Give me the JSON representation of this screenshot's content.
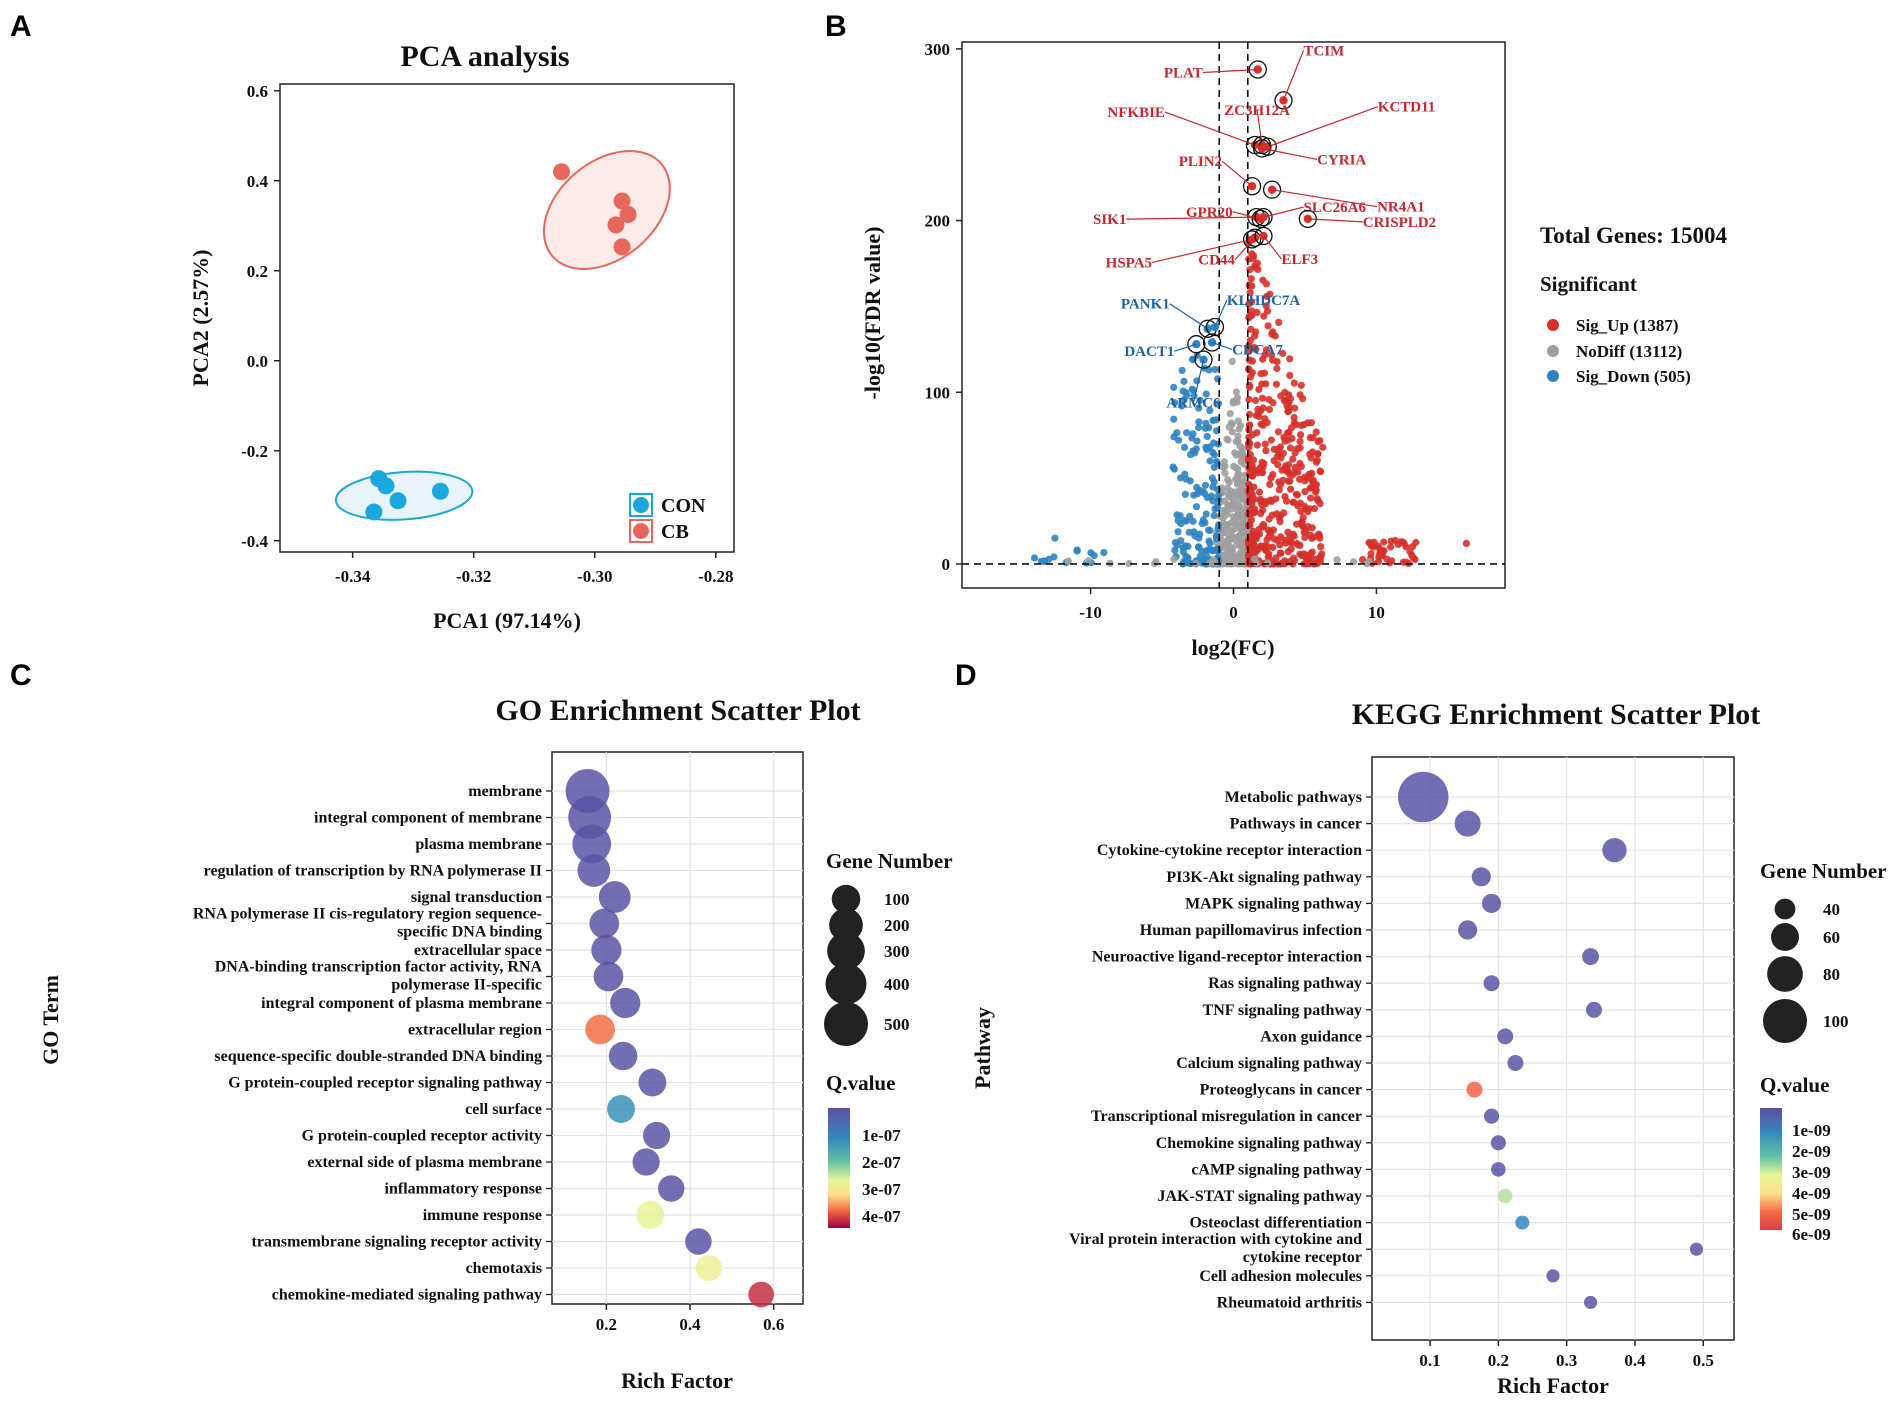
{
  "panel_labels": {
    "a": "A",
    "b": "B",
    "c": "C",
    "d": "D"
  },
  "chart_data": [
    {
      "type": "scatter",
      "panel": "A",
      "title": "PCA analysis",
      "xlabel": "PCA1 (97.14%)",
      "ylabel": "PCA2 (2.57%)",
      "xlim": [
        -0.352,
        -0.277
      ],
      "ylim": [
        -0.425,
        0.615
      ],
      "xticks": [
        -0.34,
        -0.32,
        -0.3,
        -0.28
      ],
      "yticks": [
        -0.4,
        -0.2,
        0.0,
        0.2,
        0.4,
        0.6
      ],
      "xtick_labels": [
        "-0.34",
        "-0.32",
        "-0.30",
        "-0.28"
      ],
      "ytick_labels": [
        "-0.4",
        "-0.2",
        "0.0",
        "0.2",
        "0.4",
        "0.6"
      ],
      "series": [
        {
          "name": "CON",
          "color": "#1aa7dd",
          "fill": "#e8f4fa",
          "points": [
            [
              -0.3357,
              -0.262
            ],
            [
              -0.3345,
              -0.278
            ],
            [
              -0.3325,
              -0.311
            ],
            [
              -0.3365,
              -0.336
            ],
            [
              -0.3255,
              -0.29
            ]
          ],
          "ellipse": {
            "center": [
              -0.3315,
              -0.3
            ],
            "rx_units": 0.0113,
            "ry_units": 0.105,
            "rotation_deg": -4
          }
        },
        {
          "name": "CB",
          "color": "#e8675c",
          "fill": "#fcebe8",
          "points": [
            [
              -0.3055,
              0.42
            ],
            [
              -0.2955,
              0.355
            ],
            [
              -0.2965,
              0.302
            ],
            [
              -0.2945,
              0.325
            ],
            [
              -0.2955,
              0.253
            ]
          ],
          "ellipse": {
            "center": [
              -0.298,
              0.335
            ],
            "rx_units": 0.0118,
            "ry_units": 0.215,
            "rotation_deg": -40
          }
        }
      ],
      "legend": [
        "CON",
        "CB"
      ]
    },
    {
      "type": "scatter",
      "panel": "B",
      "title": "",
      "xlabel": "log2(FC)",
      "ylabel": "-log10(FDR value)",
      "xlim": [
        -19,
        19
      ],
      "ylim": [
        -14,
        304
      ],
      "xticks": [
        -10,
        0,
        10
      ],
      "yticks": [
        0,
        100,
        200,
        300
      ],
      "xtick_labels": [
        "-10",
        "0",
        "10"
      ],
      "ytick_labels": [
        "0",
        "100",
        "200",
        "300"
      ],
      "thresholds": {
        "log2fc": [
          -1,
          1
        ],
        "fdr_line": 0
      },
      "total_genes_label": "Total Genes: 15004",
      "legend_title": "Significant",
      "legend": [
        {
          "label": "Sig_Up (1387)",
          "color": "#d7302a"
        },
        {
          "label": "NoDiff (13112)",
          "color": "#9e9e9e"
        },
        {
          "label": "Sig_Down (505)",
          "color": "#2f83c1"
        }
      ],
      "labeled_genes": [
        {
          "gene": "PLAT",
          "x": 1.7,
          "y": 288,
          "dir": "up"
        },
        {
          "gene": "TCIM",
          "x": 3.5,
          "y": 270,
          "dir": "up"
        },
        {
          "gene": "NFKBIE",
          "x": 1.5,
          "y": 244,
          "dir": "up"
        },
        {
          "gene": "ZC3H12A",
          "x": 2.0,
          "y": 244,
          "dir": "up"
        },
        {
          "gene": "KCTD11",
          "x": 2.4,
          "y": 243,
          "dir": "up"
        },
        {
          "gene": "CYRIA",
          "x": 2.0,
          "y": 242,
          "dir": "up"
        },
        {
          "gene": "PLIN2",
          "x": 1.3,
          "y": 220,
          "dir": "up"
        },
        {
          "gene": "NR4A1",
          "x": 2.7,
          "y": 218,
          "dir": "up"
        },
        {
          "gene": "SIK1",
          "x": 1.6,
          "y": 202,
          "dir": "up"
        },
        {
          "gene": "GPR20",
          "x": 1.9,
          "y": 201,
          "dir": "up"
        },
        {
          "gene": "SLC26A6",
          "x": 2.1,
          "y": 202,
          "dir": "up"
        },
        {
          "gene": "CRISPLD2",
          "x": 5.2,
          "y": 201,
          "dir": "up"
        },
        {
          "gene": "HSPA5",
          "x": 1.3,
          "y": 189,
          "dir": "up"
        },
        {
          "gene": "CD44",
          "x": 1.5,
          "y": 190,
          "dir": "up"
        },
        {
          "gene": "ELF3",
          "x": 2.1,
          "y": 191,
          "dir": "up"
        },
        {
          "gene": "PANK1",
          "x": -1.8,
          "y": 137,
          "dir": "down"
        },
        {
          "gene": "KLHDC7A",
          "x": -1.3,
          "y": 138,
          "dir": "down"
        },
        {
          "gene": "DACT1",
          "x": -2.6,
          "y": 128,
          "dir": "down"
        },
        {
          "gene": "CDCA7",
          "x": -1.5,
          "y": 129,
          "dir": "down"
        },
        {
          "gene": "ARMC6",
          "x": -2.1,
          "y": 119,
          "dir": "down"
        }
      ],
      "label_text": {
        "PLAT": "PLAT",
        "TCIM": "TCIM",
        "NFKBIE": "NFKBIE",
        "ZC3H12A": "ZC3H12A",
        "KCTD11": "KCTD11",
        "CYRIA": "CYRIA",
        "PLIN2": "PLIN2",
        "NR4A1": "NR4A1",
        "SIK1": "SIK1",
        "GPR20": "GPR20",
        "SLC26A6": "SLC26A6",
        "CRISPLD2": "CRISPLD2",
        "HSPA5": "HSPA5",
        "CD44": "CD44",
        "ELF3": "ELF3",
        "PANK1": "PANK1",
        "KLHDC7A": "KLHDC7A",
        "DACT1": "DACT1",
        "CDCA7": "CDCA7",
        "ARMC6": "ARMC6"
      }
    },
    {
      "type": "scatter",
      "panel": "C",
      "title": "GO Enrichment Scatter Plot",
      "xlabel": "Rich Factor",
      "ylabel": "GO Term",
      "xlim": [
        0.07,
        0.67
      ],
      "xticks": [
        0.2,
        0.4,
        0.6
      ],
      "xtick_labels": [
        "0.2",
        "0.4",
        "0.6"
      ],
      "terms": [
        {
          "term": [
            "membrane"
          ],
          "rich": 0.155,
          "count": 500,
          "q": 1e-08
        },
        {
          "term": [
            "integral component of membrane"
          ],
          "rich": 0.16,
          "count": 460,
          "q": 1e-08
        },
        {
          "term": [
            "plasma membrane"
          ],
          "rich": 0.165,
          "count": 330,
          "q": 1e-08
        },
        {
          "term": [
            "regulation of transcription by RNA polymerase II"
          ],
          "rich": 0.17,
          "count": 180,
          "q": 1e-08
        },
        {
          "term": [
            "signal transduction"
          ],
          "rich": 0.22,
          "count": 160,
          "q": 1e-08
        },
        {
          "term": [
            "RNA polymerase II cis-regulatory region sequence-",
            "specific DNA binding"
          ],
          "rich": 0.195,
          "count": 120,
          "q": 1e-08
        },
        {
          "term": [
            "extracellular space"
          ],
          "rich": 0.2,
          "count": 130,
          "q": 1e-08
        },
        {
          "term": [
            "DNA-binding transcription factor activity, RNA",
            "polymerase II-specific"
          ],
          "rich": 0.205,
          "count": 120,
          "q": 1e-08
        },
        {
          "term": [
            "integral component of plasma membrane"
          ],
          "rich": 0.245,
          "count": 130,
          "q": 1e-08
        },
        {
          "term": [
            "extracellular region"
          ],
          "rich": 0.185,
          "count": 120,
          "q": 3.9e-07
        },
        {
          "term": [
            "sequence-specific double-stranded DNA binding"
          ],
          "rich": 0.24,
          "count": 100,
          "q": 1e-08
        },
        {
          "term": [
            "G protein-coupled receptor signaling pathway"
          ],
          "rich": 0.31,
          "count": 90,
          "q": 1e-08
        },
        {
          "term": [
            "cell surface"
          ],
          "rich": 0.235,
          "count": 90,
          "q": 1.3e-07
        },
        {
          "term": [
            "G protein-coupled receptor activity"
          ],
          "rich": 0.32,
          "count": 80,
          "q": 1e-08
        },
        {
          "term": [
            "external side of plasma membrane"
          ],
          "rich": 0.295,
          "count": 80,
          "q": 1e-08
        },
        {
          "term": [
            "inflammatory response"
          ],
          "rich": 0.355,
          "count": 70,
          "q": 1e-08
        },
        {
          "term": [
            "immune response"
          ],
          "rich": 0.305,
          "count": 90,
          "q": 2.8e-07
        },
        {
          "term": [
            "transmembrane signaling receptor activity"
          ],
          "rich": 0.42,
          "count": 70,
          "q": 1e-08
        },
        {
          "term": [
            "chemotaxis"
          ],
          "rich": 0.445,
          "count": 65,
          "q": 2.9e-07
        },
        {
          "term": [
            "chemokine-mediated signaling pathway"
          ],
          "rich": 0.57,
          "count": 60,
          "q": 4.3e-07
        }
      ],
      "size_legend_title": "Gene Number",
      "size_legend": [
        100,
        200,
        300,
        400,
        500
      ],
      "color_legend_title": "Q.value",
      "color_legend_ticks": [
        "1e-07",
        "2e-07",
        "3e-07",
        "4e-07"
      ],
      "color_range": [
        0.0,
        4.6e-07
      ]
    },
    {
      "type": "scatter",
      "panel": "D",
      "title": "KEGG Enrichment Scatter Plot",
      "xlabel": "Rich Factor",
      "ylabel": "Pathway",
      "xlim": [
        0.015,
        0.545
      ],
      "xticks": [
        0.1,
        0.2,
        0.3,
        0.4,
        0.5
      ],
      "xtick_labels": [
        "0.1",
        "0.2",
        "0.3",
        "0.4",
        "0.5"
      ],
      "terms": [
        {
          "term": [
            "Metabolic pathways"
          ],
          "rich": 0.09,
          "count": 115,
          "q": 1e-10
        },
        {
          "term": [
            "Pathways in cancer"
          ],
          "rich": 0.155,
          "count": 55,
          "q": 1e-10
        },
        {
          "term": [
            "Cytokine-cytokine receptor interaction"
          ],
          "rich": 0.37,
          "count": 50,
          "q": 1e-10
        },
        {
          "term": [
            "PI3K-Akt signaling pathway"
          ],
          "rich": 0.175,
          "count": 35,
          "q": 1e-10
        },
        {
          "term": [
            "MAPK signaling pathway"
          ],
          "rich": 0.19,
          "count": 35,
          "q": 1e-10
        },
        {
          "term": [
            "Human papillomavirus infection"
          ],
          "rich": 0.155,
          "count": 35,
          "q": 1e-10
        },
        {
          "term": [
            "Neuroactive ligand-receptor interaction"
          ],
          "rich": 0.335,
          "count": 28,
          "q": 1e-10
        },
        {
          "term": [
            "Ras signaling pathway"
          ],
          "rich": 0.19,
          "count": 25,
          "q": 1e-10
        },
        {
          "term": [
            "TNF signaling pathway"
          ],
          "rich": 0.34,
          "count": 25,
          "q": 1e-10
        },
        {
          "term": [
            "Axon guidance"
          ],
          "rich": 0.21,
          "count": 25,
          "q": 1e-10
        },
        {
          "term": [
            "Calcium signaling pathway"
          ],
          "rich": 0.225,
          "count": 25,
          "q": 1e-10
        },
        {
          "term": [
            "Proteoglycans in cancer"
          ],
          "rich": 0.165,
          "count": 25,
          "q": 5.7e-09
        },
        {
          "term": [
            "Transcriptional misregulation in cancer"
          ],
          "rich": 0.19,
          "count": 22,
          "q": 1e-10
        },
        {
          "term": [
            "Chemokine signaling pathway"
          ],
          "rich": 0.2,
          "count": 22,
          "q": 1e-10
        },
        {
          "term": [
            "cAMP signaling pathway"
          ],
          "rich": 0.2,
          "count": 20,
          "q": 1e-10
        },
        {
          "term": [
            "JAK-STAT signaling pathway"
          ],
          "rich": 0.21,
          "count": 20,
          "q": 3.2e-09
        },
        {
          "term": [
            "Osteoclast differentiation"
          ],
          "rich": 0.235,
          "count": 18,
          "q": 1.3e-09
        },
        {
          "term": [
            "Viral protein interaction with cytokine and",
            "cytokine receptor"
          ],
          "rich": 0.49,
          "count": 15,
          "q": 1e-10
        },
        {
          "term": [
            "Cell adhesion molecules"
          ],
          "rich": 0.28,
          "count": 15,
          "q": 1e-10
        },
        {
          "term": [
            "Rheumatoid arthritis"
          ],
          "rich": 0.335,
          "count": 15,
          "q": 1e-10
        }
      ],
      "size_legend_title": "Gene Number",
      "size_legend": [
        40,
        60,
        80,
        100
      ],
      "color_legend_title": "Q.value",
      "color_legend_ticks": [
        "1e-09",
        "2e-09",
        "3e-09",
        "4e-09",
        "5e-09",
        "6e-09"
      ],
      "color_range": [
        0.0,
        6.5e-09
      ]
    }
  ]
}
